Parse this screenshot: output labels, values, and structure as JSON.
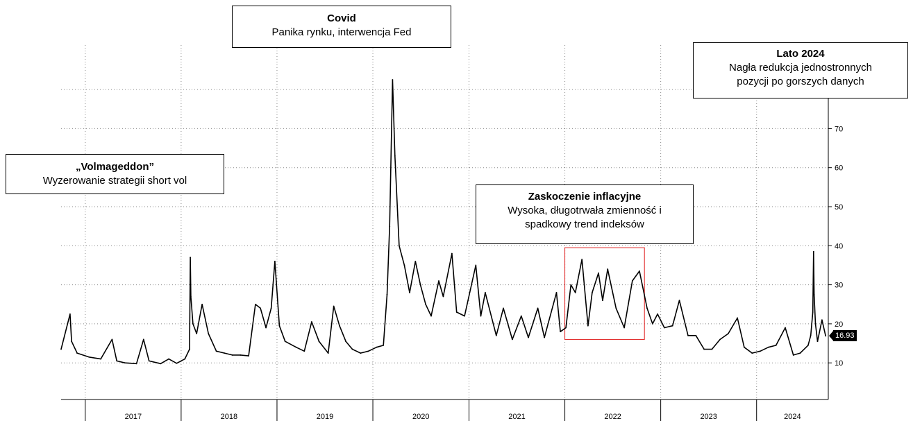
{
  "chart_data": {
    "type": "line",
    "x_range": [
      "2016-10-01",
      "2024-09-30"
    ],
    "ylim": [
      0,
      85
    ],
    "y_ticks": [
      10,
      20,
      30,
      40,
      50,
      60,
      70
    ],
    "year_labels": [
      "2017",
      "2018",
      "2019",
      "2020",
      "2021",
      "2022",
      "2023",
      "2024"
    ],
    "grid": true,
    "last_value": "16.93",
    "series": [
      {
        "x": [
          "2016-10-01",
          "2016-11-04",
          "2016-11-10",
          "2016-12-01",
          "2017-01-15",
          "2017-03-01",
          "2017-04-13",
          "2017-05-01",
          "2017-06-01",
          "2017-07-15",
          "2017-08-11",
          "2017-09-01",
          "2017-10-15",
          "2017-11-15",
          "2017-12-15",
          "2018-01-15",
          "2018-02-02",
          "2018-02-05",
          "2018-02-07",
          "2018-02-15",
          "2018-03-01",
          "2018-03-22",
          "2018-04-15",
          "2018-05-15",
          "2018-06-15",
          "2018-07-15",
          "2018-08-15",
          "2018-09-15",
          "2018-10-11",
          "2018-10-30",
          "2018-11-20",
          "2018-12-10",
          "2018-12-24",
          "2019-01-10",
          "2019-02-01",
          "2019-03-15",
          "2019-04-15",
          "2019-05-13",
          "2019-06-10",
          "2019-07-15",
          "2019-08-05",
          "2019-08-27",
          "2019-09-20",
          "2019-10-15",
          "2019-11-15",
          "2019-12-15",
          "2020-01-15",
          "2020-02-10",
          "2020-02-24",
          "2020-03-05",
          "2020-03-16",
          "2020-03-25",
          "2020-04-10",
          "2020-04-30",
          "2020-05-20",
          "2020-06-11",
          "2020-06-30",
          "2020-07-20",
          "2020-08-10",
          "2020-09-08",
          "2020-09-25",
          "2020-10-28",
          "2020-11-15",
          "2020-12-15",
          "2021-01-27",
          "2021-02-15",
          "2021-03-04",
          "2021-04-15",
          "2021-05-12",
          "2021-06-15",
          "2021-07-19",
          "2021-08-15",
          "2021-09-20",
          "2021-10-15",
          "2021-11-30",
          "2021-12-15",
          "2022-01-05",
          "2022-01-24",
          "2022-02-10",
          "2022-03-07",
          "2022-03-30",
          "2022-04-15",
          "2022-05-09",
          "2022-05-25",
          "2022-06-13",
          "2022-07-15",
          "2022-08-15",
          "2022-09-15",
          "2022-10-12",
          "2022-11-10",
          "2022-12-01",
          "2022-12-20",
          "2023-01-15",
          "2023-02-15",
          "2023-03-13",
          "2023-04-15",
          "2023-05-15",
          "2023-06-15",
          "2023-07-15",
          "2023-08-15",
          "2023-09-15",
          "2023-10-20",
          "2023-11-15",
          "2023-12-15",
          "2024-01-15",
          "2024-02-15",
          "2024-03-15",
          "2024-04-19",
          "2024-05-20",
          "2024-06-15",
          "2024-07-15",
          "2024-07-25",
          "2024-08-02",
          "2024-08-05",
          "2024-08-07",
          "2024-08-12",
          "2024-08-20",
          "2024-09-06",
          "2024-09-20"
        ],
        "y": [
          13.5,
          22.5,
          15.5,
          12.5,
          11.5,
          11.0,
          16.0,
          10.5,
          10.0,
          9.8,
          16.0,
          10.5,
          9.8,
          11.0,
          9.9,
          11.0,
          13.5,
          37.0,
          27.0,
          20.0,
          17.5,
          25.0,
          17.5,
          13.0,
          12.5,
          12.0,
          12.0,
          11.8,
          25.0,
          24.0,
          19.0,
          24.0,
          36.0,
          19.5,
          15.5,
          14.0,
          13.0,
          20.5,
          15.5,
          12.5,
          24.5,
          19.5,
          15.5,
          13.5,
          12.5,
          13.0,
          14.0,
          14.5,
          27.5,
          45.0,
          82.5,
          63.0,
          40.0,
          35.0,
          28.0,
          36.0,
          30.0,
          25.0,
          22.0,
          31.0,
          27.0,
          38.0,
          23.0,
          22.0,
          35.0,
          22.0,
          28.0,
          17.0,
          24.0,
          16.0,
          22.0,
          16.5,
          24.0,
          16.5,
          28.0,
          18.0,
          19.0,
          30.0,
          28.0,
          36.5,
          19.5,
          28.0,
          33.0,
          26.0,
          34.0,
          24.0,
          19.0,
          31.0,
          33.5,
          24.0,
          20.0,
          22.5,
          19.0,
          19.5,
          26.0,
          17.0,
          17.0,
          13.5,
          13.5,
          16.0,
          17.5,
          21.5,
          14.0,
          12.5,
          13.0,
          14.0,
          14.5,
          19.0,
          12.0,
          12.5,
          14.5,
          17.0,
          23.0,
          38.5,
          27.5,
          20.0,
          15.5,
          21.0,
          16.9
        ],
        "color": "#000000"
      }
    ],
    "annotations": [
      {
        "title": "„Volmageddon”",
        "body": [
          "Wyzerowanie strategii short vol"
        ]
      },
      {
        "title": "Covid",
        "body": [
          "Panika rynku, interwencja Fed"
        ]
      },
      {
        "title": "Zaskoczenie inflacyjne",
        "body": [
          "Wysoka, długotrwała zmienność i",
          "spadkowy trend indeksów"
        ]
      },
      {
        "title": "Lato 2024",
        "body": [
          "Nagła redukcja jednostronnych",
          "pozycji po gorszych danych"
        ]
      }
    ],
    "highlight_range": {
      "x": [
        "2022-01-01",
        "2022-10-31"
      ],
      "y": [
        16,
        39.5
      ],
      "color": "#e02020"
    }
  }
}
